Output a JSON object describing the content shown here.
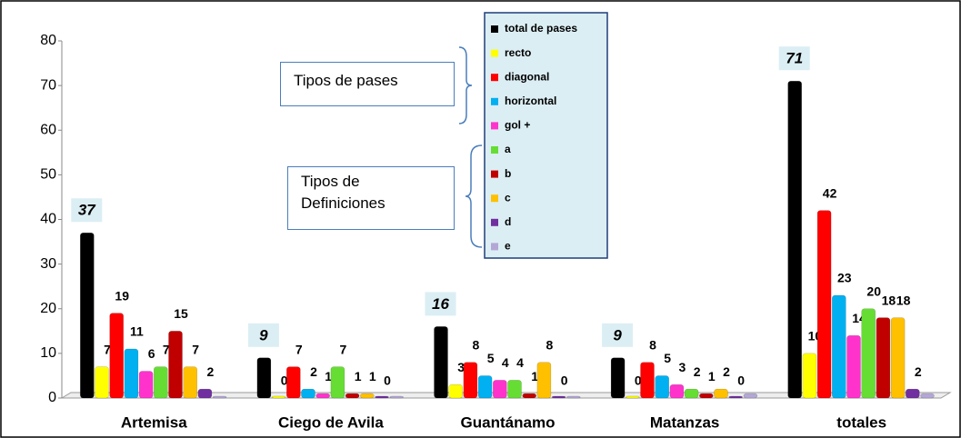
{
  "chart_data": {
    "type": "bar",
    "categories": [
      "Artemisa",
      "Ciego de Avila",
      "Guantánamo",
      "Matanzas",
      "totales"
    ],
    "series": [
      {
        "name": "total de pases",
        "color": "#000000",
        "values": [
          37,
          9,
          16,
          9,
          71
        ],
        "show_labels": true,
        "label_style": "boxed"
      },
      {
        "name": "recto",
        "color": "#ffff00",
        "values": [
          7,
          0,
          3,
          0,
          10
        ],
        "show_labels": true
      },
      {
        "name": "diagonal",
        "color": "#ff0000",
        "values": [
          19,
          7,
          8,
          8,
          42
        ],
        "show_labels": true
      },
      {
        "name": "horizontal",
        "color": "#00b0f0",
        "values": [
          11,
          2,
          5,
          5,
          23
        ],
        "show_labels": true
      },
      {
        "name": "gol +",
        "color": "#ff33cc",
        "values": [
          6,
          1,
          4,
          3,
          14
        ],
        "show_labels": true
      },
      {
        "name": "a",
        "color": "#66dd33",
        "values": [
          7,
          7,
          4,
          2,
          20
        ],
        "show_labels": true
      },
      {
        "name": "b",
        "color": "#c00000",
        "values": [
          15,
          1,
          1,
          1,
          18
        ],
        "show_labels": true
      },
      {
        "name": "c",
        "color": "#ffc000",
        "values": [
          7,
          1,
          8,
          2,
          18
        ],
        "show_labels": true
      },
      {
        "name": "d",
        "color": "#7030a0",
        "values": [
          2,
          0,
          0,
          0,
          2
        ],
        "show_labels": true
      },
      {
        "name": "e",
        "color": "#b4a7d6",
        "values": [
          0,
          0,
          0,
          1,
          1
        ],
        "show_labels": false
      }
    ],
    "ylim": [
      0,
      80
    ],
    "yticks": [
      0,
      10,
      20,
      30,
      40,
      50,
      60,
      70,
      80
    ],
    "grid": false,
    "legend": "top",
    "annotations": [
      "Tipos de pases",
      "Tipos de Definiciones"
    ]
  }
}
